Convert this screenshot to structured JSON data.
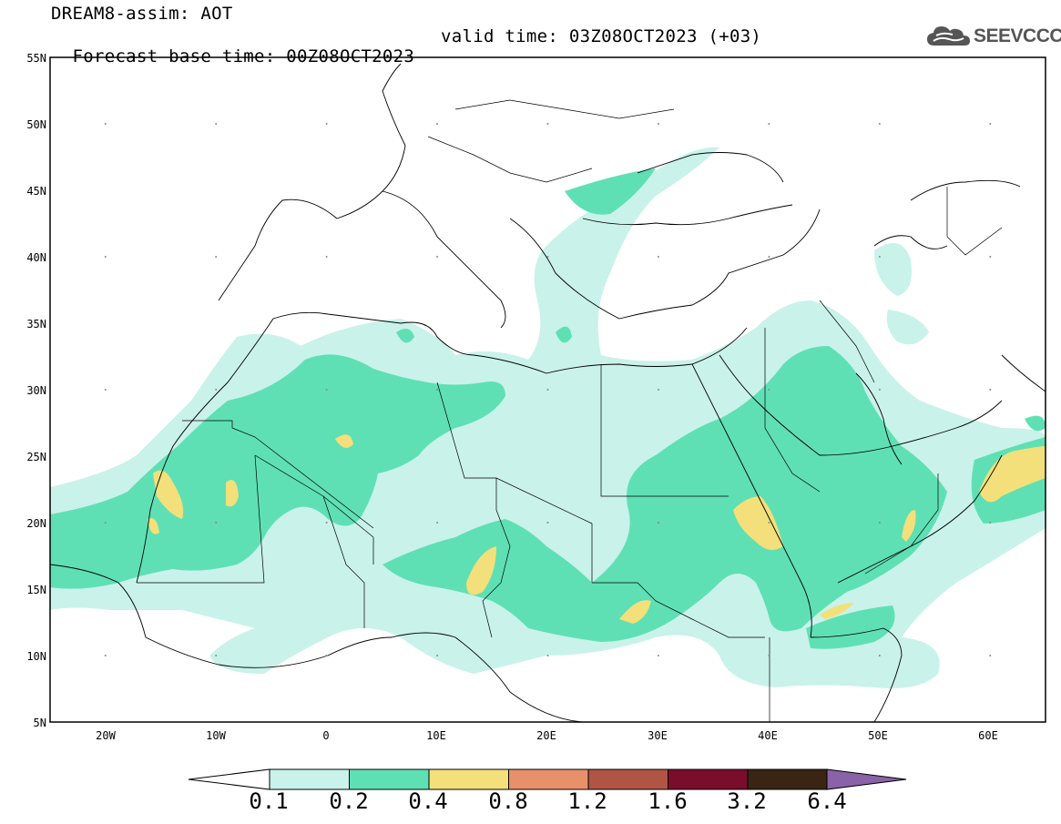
{
  "header": {
    "title": "DREAM8-assim: AOT",
    "base_time": "Forecast base time: 00Z08OCT2023",
    "valid_time": "valid time: 03Z08OCT2023 (+03)"
  },
  "logo": {
    "text": "SEEVCCC",
    "icon": "cloud-icon"
  },
  "axes": {
    "lat_labels": [
      "55N",
      "50N",
      "45N",
      "40N",
      "35N",
      "30N",
      "25N",
      "20N",
      "15N",
      "10N",
      "5N"
    ],
    "lon_labels": [
      "20W",
      "10W",
      "0",
      "10E",
      "20E",
      "30E",
      "40E",
      "50E",
      "60E"
    ],
    "lat_range": [
      5,
      55
    ],
    "lon_range": [
      -25,
      65
    ]
  },
  "colorbar": {
    "labels": [
      "0.1",
      "0.2",
      "0.4",
      "0.8",
      "1.2",
      "1.6",
      "3.2",
      "6.4"
    ],
    "colors": [
      "#c9f2ea",
      "#5fe0b4",
      "#f3e07a",
      "#e8906a",
      "#b05545",
      "#7a0c2c",
      "#3a2414",
      "#8a62a8"
    ]
  }
}
